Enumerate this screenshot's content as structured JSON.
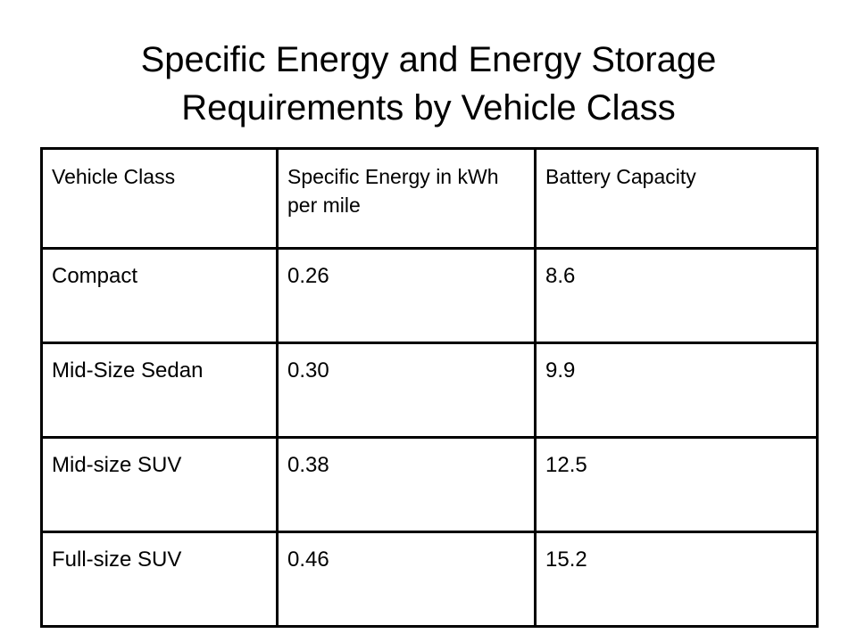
{
  "title": {
    "line1": "Specific Energy and Energy Storage",
    "line2": "Requirements by Vehicle Class"
  },
  "table": {
    "headers": [
      "Vehicle Class",
      "Specific Energy in kWh per mile",
      "Battery Capacity"
    ],
    "rows": [
      [
        "Compact",
        "0.26",
        "8.6"
      ],
      [
        "Mid-Size  Sedan",
        "0.30",
        "9.9"
      ],
      [
        "Mid-size  SUV",
        "0.38",
        "12.5"
      ],
      [
        "Full-size  SUV",
        "0.46",
        "15.2"
      ]
    ]
  }
}
